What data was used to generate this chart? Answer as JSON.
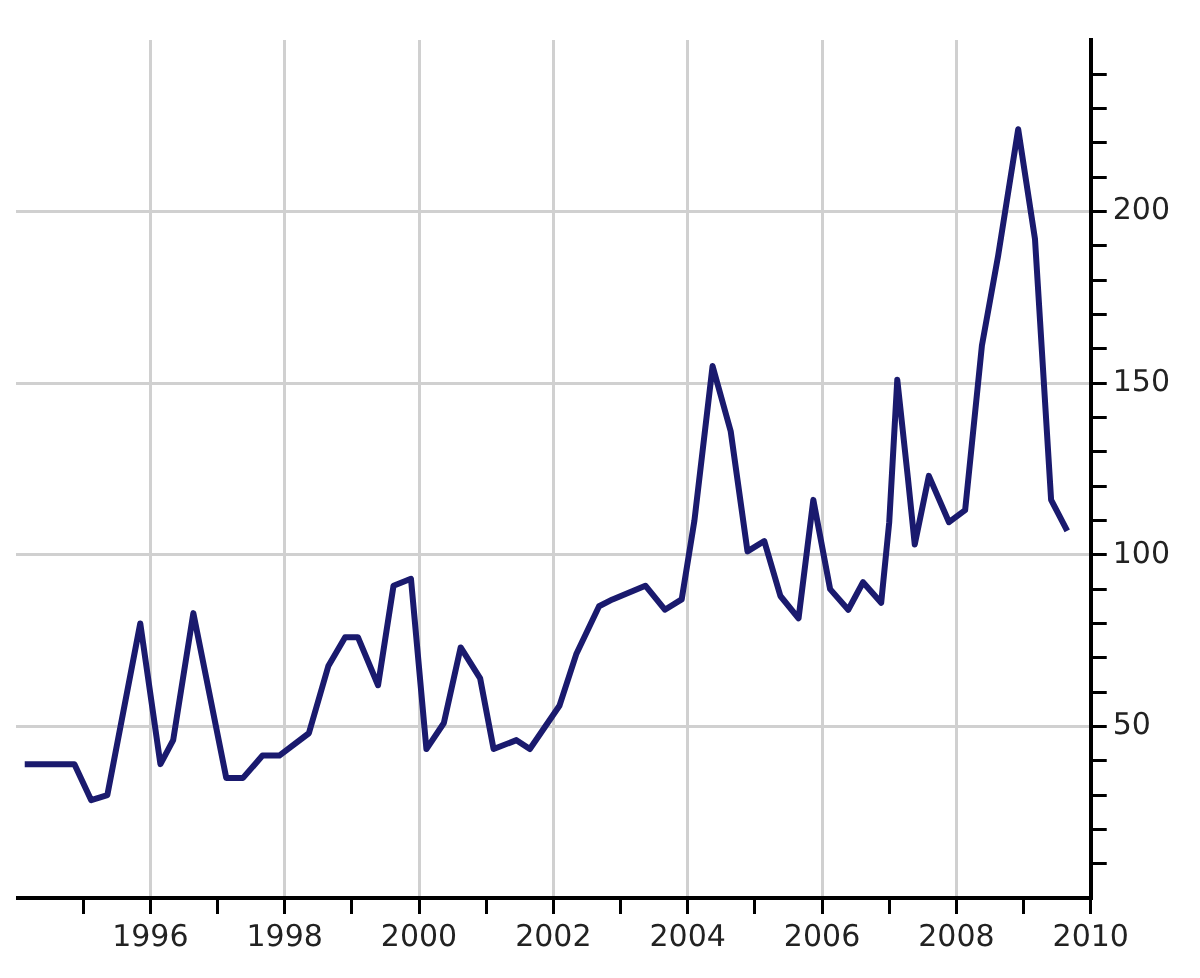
{
  "chart_data": {
    "type": "line",
    "x": [
      1994.13,
      1994.87,
      1995.12,
      1995.36,
      1995.85,
      1996.15,
      1996.34,
      1996.64,
      1997.13,
      1997.38,
      1997.67,
      1997.92,
      1998.36,
      1998.65,
      1998.9,
      1999.09,
      1999.39,
      1999.62,
      1999.88,
      2000.11,
      2000.37,
      2000.62,
      2000.91,
      2001.11,
      2001.45,
      2001.65,
      2002.09,
      2002.34,
      2002.68,
      2002.88,
      2003.37,
      2003.66,
      2003.91,
      2004.1,
      2004.37,
      2004.64,
      2004.89,
      2005.14,
      2005.38,
      2005.65,
      2005.87,
      2006.12,
      2006.39,
      2006.61,
      2006.88,
      2007.0,
      2007.12,
      2007.28,
      2007.38,
      2007.59,
      2007.89,
      2008.13,
      2008.38,
      2008.62,
      2008.92,
      2009.17,
      2009.41,
      2009.65
    ],
    "series": [
      {
        "color": "#1a1a6e",
        "values": [
          39,
          39,
          28.5,
          30,
          80,
          39,
          46,
          83,
          35,
          35,
          41.5,
          41.5,
          48,
          67.6,
          76,
          76,
          62,
          91,
          93,
          43.4,
          51,
          73,
          64,
          43.4,
          46,
          43.4,
          56,
          71,
          85,
          87,
          91,
          84,
          87,
          110,
          155,
          136,
          101,
          104,
          88,
          81.5,
          116,
          90,
          84,
          92,
          86,
          109.5,
          151,
          122,
          103,
          123,
          109.5,
          113,
          161,
          187,
          224,
          192,
          116,
          107
        ]
      }
    ],
    "xlim": [
      1994,
      2010
    ],
    "xticks": [
      {
        "value": 1995,
        "label": null
      },
      1996,
      {
        "value": 1997,
        "label": null
      },
      1998,
      {
        "value": 1999,
        "label": null
      },
      2000,
      {
        "value": 2001,
        "label": null
      },
      2002,
      {
        "value": 2003,
        "label": null
      },
      2004,
      {
        "value": 2005,
        "label": null
      },
      2006,
      {
        "value": 2007,
        "label": null
      },
      2008,
      {
        "value": 2009,
        "label": null
      },
      2010
    ],
    "ylim": [
      0,
      250
    ],
    "yticks": [
      {
        "value": 10,
        "label": null
      },
      {
        "value": 20,
        "label": null
      },
      {
        "value": 30,
        "label": null
      },
      {
        "value": 40,
        "label": null
      },
      50,
      {
        "value": 60,
        "label": null
      },
      {
        "value": 70,
        "label": null
      },
      {
        "value": 80,
        "label": null
      },
      {
        "value": 90,
        "label": null
      },
      100,
      {
        "value": 110,
        "label": null
      },
      {
        "value": 120,
        "label": null
      },
      {
        "value": 130,
        "label": null
      },
      {
        "value": 140,
        "label": null
      },
      150,
      {
        "value": 160,
        "label": null
      },
      {
        "value": 170,
        "label": null
      },
      {
        "value": 180,
        "label": null
      },
      {
        "value": 190,
        "label": null
      },
      200,
      {
        "value": 210,
        "label": null
      },
      {
        "value": 220,
        "label": null
      },
      {
        "value": 230,
        "label": null
      },
      {
        "value": 240,
        "label": null
      }
    ],
    "grid": true,
    "legend": false,
    "marker": "none",
    "line_style": "solid"
  }
}
